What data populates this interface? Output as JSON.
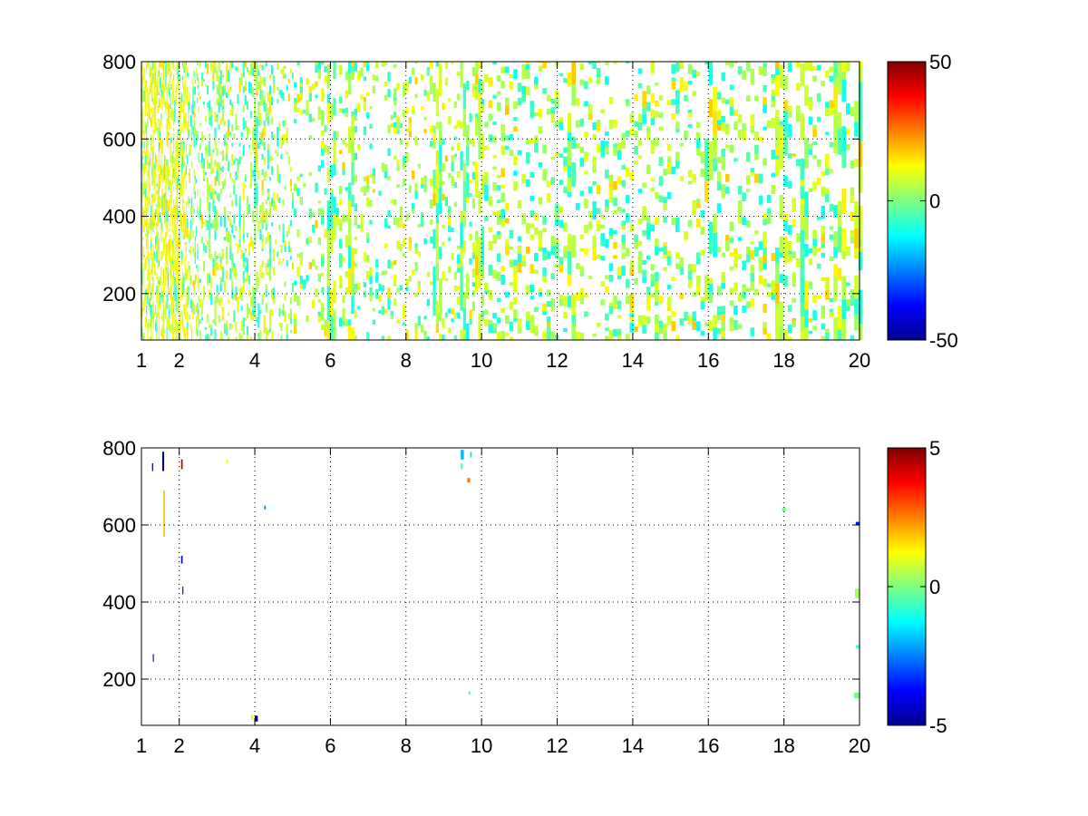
{
  "chart_data": [
    {
      "type": "heatmap",
      "title": "",
      "xlabel": "",
      "ylabel": "",
      "xlim": [
        1,
        20
      ],
      "ylim": [
        80,
        800
      ],
      "xticks": [
        1,
        2,
        4,
        6,
        8,
        10,
        12,
        14,
        16,
        18,
        20
      ],
      "xtick_labels": [
        "1",
        "2",
        "4",
        "6",
        "8",
        "10",
        "12",
        "14",
        "16",
        "18",
        "20"
      ],
      "yticks": [
        200,
        400,
        600,
        800
      ],
      "ytick_labels": [
        "200",
        "400",
        "600",
        "800"
      ],
      "grid": true,
      "colormap": "jet",
      "clim": [
        -50,
        50
      ],
      "colorbar_ticks": [
        -50,
        0,
        50
      ],
      "colorbar_labels": [
        "-50",
        "0",
        "50"
      ],
      "pattern": "dense",
      "cells": []
    },
    {
      "type": "heatmap",
      "title": "",
      "xlabel": "",
      "ylabel": "",
      "xlim": [
        1,
        20
      ],
      "ylim": [
        80,
        800
      ],
      "xticks": [
        1,
        2,
        4,
        6,
        8,
        10,
        12,
        14,
        16,
        18,
        20
      ],
      "xtick_labels": [
        "1",
        "2",
        "4",
        "6",
        "8",
        "10",
        "12",
        "14",
        "16",
        "18",
        "20"
      ],
      "yticks": [
        200,
        400,
        600,
        800
      ],
      "ytick_labels": [
        "200",
        "400",
        "600",
        "800"
      ],
      "grid": true,
      "colormap": "jet",
      "clim": [
        -5,
        5
      ],
      "colorbar_ticks": [
        -5,
        0,
        5
      ],
      "colorbar_labels": [
        "-5",
        "0",
        "5"
      ],
      "pattern": "sparse",
      "cells": [
        {
          "x": 1.55,
          "y": 740,
          "w": 0.05,
          "h": 50,
          "v": -4.6
        },
        {
          "x": 1.58,
          "y": 570,
          "w": 0.04,
          "h": 120,
          "v": 1.8
        },
        {
          "x": 1.28,
          "y": 740,
          "w": 0.03,
          "h": 20,
          "v": -4.9
        },
        {
          "x": 1.3,
          "y": 245,
          "w": 0.03,
          "h": 20,
          "v": -3.5
        },
        {
          "x": 2.05,
          "y": 745,
          "w": 0.04,
          "h": 25,
          "v": 4.6
        },
        {
          "x": 2.05,
          "y": 500,
          "w": 0.04,
          "h": 20,
          "v": -4.0
        },
        {
          "x": 2.08,
          "y": 420,
          "w": 0.03,
          "h": 20,
          "v": -3.5
        },
        {
          "x": 3.25,
          "y": 760,
          "w": 0.04,
          "h": 10,
          "v": 1.0
        },
        {
          "x": 4.0,
          "y": 90,
          "w": 0.08,
          "h": 15,
          "v": -4.9
        },
        {
          "x": 3.9,
          "y": 95,
          "w": 0.05,
          "h": 12,
          "v": 0.8
        },
        {
          "x": 4.25,
          "y": 640,
          "w": 0.04,
          "h": 10,
          "v": -2.5
        },
        {
          "x": 9.45,
          "y": 770,
          "w": 0.08,
          "h": 25,
          "v": -2.0
        },
        {
          "x": 9.45,
          "y": 745,
          "w": 0.05,
          "h": 15,
          "v": -0.6
        },
        {
          "x": 9.62,
          "y": 710,
          "w": 0.08,
          "h": 12,
          "v": 2.5
        },
        {
          "x": 9.7,
          "y": 775,
          "w": 0.04,
          "h": 15,
          "v": -1.5
        },
        {
          "x": 9.65,
          "y": 160,
          "w": 0.06,
          "h": 8,
          "v": -0.3
        },
        {
          "x": 17.95,
          "y": 635,
          "w": 0.1,
          "h": 10,
          "v": -0.1
        },
        {
          "x": 19.9,
          "y": 600,
          "w": 0.1,
          "h": 8,
          "v": -3.5
        },
        {
          "x": 19.88,
          "y": 410,
          "w": 0.12,
          "h": 25,
          "v": 0.4
        },
        {
          "x": 19.9,
          "y": 280,
          "w": 0.1,
          "h": 8,
          "v": -0.5
        },
        {
          "x": 19.85,
          "y": 150,
          "w": 0.15,
          "h": 15,
          "v": -0.1
        }
      ]
    }
  ]
}
